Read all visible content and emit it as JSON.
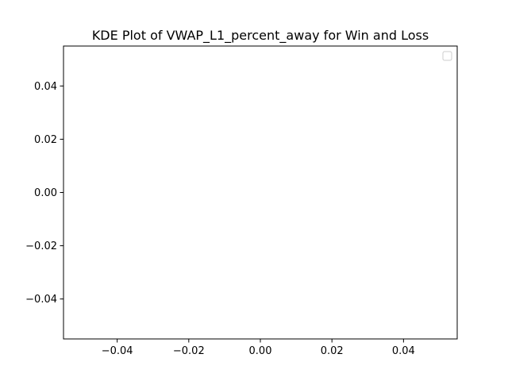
{
  "chart_data": {
    "type": "line",
    "title": "KDE Plot of VWAP_L1_percent_away for Win and Loss",
    "xlabel": "",
    "ylabel": "",
    "xlim": [
      -0.055,
      0.055
    ],
    "ylim": [
      -0.055,
      0.055
    ],
    "x_ticks": [
      -0.04,
      -0.02,
      0.0,
      0.02,
      0.04
    ],
    "y_ticks": [
      -0.04,
      -0.02,
      0.0,
      0.02,
      0.04
    ],
    "x_tick_labels": [
      "−0.04",
      "−0.02",
      "0.00",
      "0.02",
      "0.04"
    ],
    "y_tick_labels": [
      "−0.04",
      "−0.02",
      "0.00",
      "0.02",
      "0.04"
    ],
    "series": [],
    "grid": false,
    "legend": {
      "placement": "upper right",
      "entries": []
    }
  }
}
